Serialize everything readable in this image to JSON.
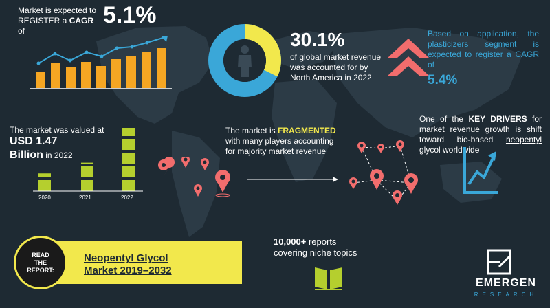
{
  "cagr_block": {
    "line1": "Market is expected to",
    "line2_pre": "REGISTER a ",
    "line2_bold": "CAGR",
    "line2_post": " of",
    "value": "5.1%"
  },
  "north_america": {
    "value": "30.1%",
    "text": "of global market revenue was accounted for by North America in 2022"
  },
  "application": {
    "text": "Based on application, the plasticizers segment is expected to register a CAGR of",
    "value": "5.4%"
  },
  "market_value": {
    "line1": "The market was valued at",
    "value_line1": "USD 1.47",
    "value_line2": "Billion",
    "year_suffix": " in 2022",
    "bar_years": [
      "2020",
      "2021",
      "2022"
    ],
    "bar_levels": [
      0.28,
      0.45,
      1.0
    ]
  },
  "fragmented": {
    "pre": "The market is ",
    "bold": "FRAGMENTED",
    "post": " with many players accounting for majority market revenue"
  },
  "drivers": {
    "pre": "One of the ",
    "bold": "KEY DRIVERS",
    "mid": " for market revenue growth is shift toward bio-based ",
    "underlined": "neopentyl",
    "post": " glycol worldwide"
  },
  "read_report": {
    "label_lines": [
      "READ",
      "THE",
      "REPORT:"
    ],
    "title_line1": "Neopentyl Glycol",
    "title_line2": "Market 2019–2032"
  },
  "reports": {
    "bold": "10,000+",
    "post": " reports",
    "line2": "covering niche topics"
  },
  "logo": {
    "name": "EMERGEN",
    "sub": "RESEARCH"
  },
  "colors": {
    "background": "#1e2a33",
    "yellow_green": "#b5cf2e",
    "orange": "#f5a623",
    "blue": "#3aa7d8",
    "coral": "#f26d6d",
    "yellow": "#f2e84c"
  },
  "icons": [
    "bar-chart-icon",
    "donut-person-icon",
    "up-arrows-icon",
    "map-pin-icon",
    "growth-chart-icon",
    "book-icon",
    "logo-icon"
  ]
}
